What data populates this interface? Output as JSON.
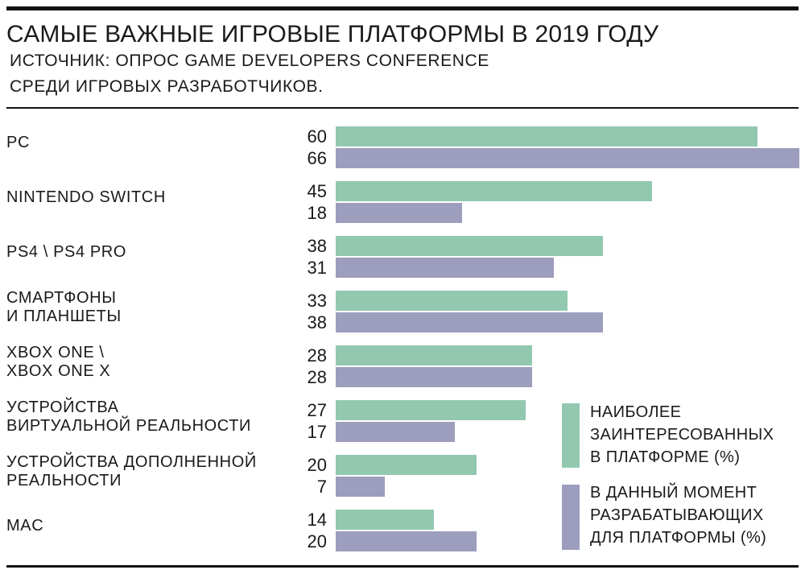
{
  "chart_data": {
    "type": "bar",
    "orientation": "horizontal",
    "title": "САМЫЕ ВАЖНЫЕ ИГРОВЫЕ ПЛАТФОРМЫ В 2019 ГОДУ",
    "subtitle_lines": [
      "ИСТОЧНИК: ОПРОС GAME DEVELOPERS CONFERENCE",
      "СРЕДИ ИГРОВЫХ РАЗРАБОТЧИКОВ."
    ],
    "categories": [
      [
        "PC"
      ],
      [
        "NINTENDO SWITCH"
      ],
      [
        "PS4 \\ PS4 PRO"
      ],
      [
        "СМАРТФОНЫ",
        "И ПЛАНШЕТЫ"
      ],
      [
        "XBOX ONE \\",
        "XBOX ONE X"
      ],
      [
        "УСТРОЙСТВА",
        "ВИРТУАЛЬНОЙ РЕАЛЬНОСТИ"
      ],
      [
        "УСТРОЙСТВА ДОПОЛНЕННОЙ",
        "РЕАЛЬНОСТИ"
      ],
      [
        "MAC"
      ]
    ],
    "series": [
      {
        "name": "НАИБОЛЕЕ ЗАИНТЕРЕСОВАННЫХ В ПЛАТФОРМЕ (%)",
        "legend_lines": [
          "НАИБОЛЕЕ",
          "ЗАИНТЕРЕСОВАННЫХ",
          "В ПЛАТФОРМЕ (%)"
        ],
        "color": "#93c8b0",
        "values": [
          60,
          45,
          38,
          33,
          28,
          27,
          20,
          14
        ]
      },
      {
        "name": "В ДАННЫЙ МОМЕНТ РАЗРАБАТЫВАЮЩИХ ДЛЯ ПЛАТФОРМЫ (%)",
        "legend_lines": [
          "В ДАННЫЙ МОМЕНТ",
          "РАЗРАБАТЫВАЮЩИХ",
          "ДЛЯ  ПЛАТФОРМЫ (%)"
        ],
        "color": "#9d9dbe",
        "values": [
          66,
          18,
          31,
          38,
          28,
          17,
          7,
          20
        ]
      }
    ],
    "xlim": [
      0,
      66
    ],
    "grid": false,
    "legend_position": "bottom-right"
  }
}
